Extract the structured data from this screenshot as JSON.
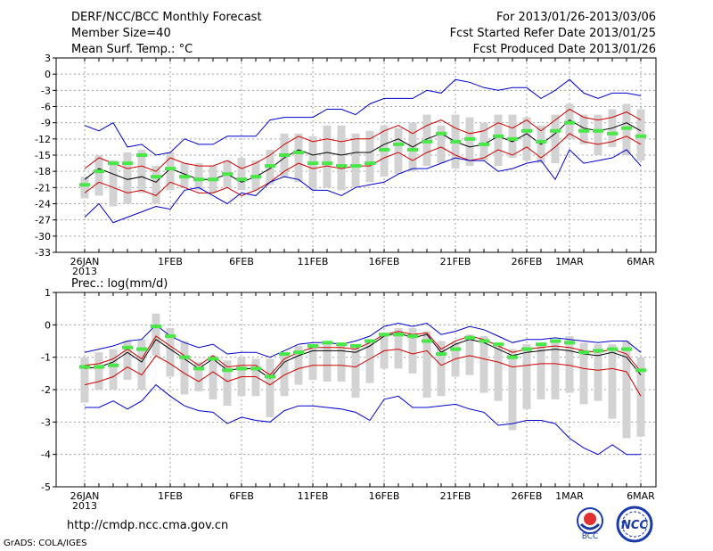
{
  "header": {
    "line1": "DERF/NCC/BCC Monthly Forecast",
    "line2": "Member Size=40",
    "line3": "Mean Surf. Temp.: °C",
    "right1": "For 2013/01/26-2013/03/06",
    "right2": "Fcst Started Refer Date 2013/01/25",
    "right3": "Fcst Produced Date 2013/01/26"
  },
  "footer": {
    "url": "http://cmdp.ncc.cma.gov.cn",
    "credit": "GrADS: COLA/IGES",
    "logo1_text": "BCC",
    "logo2_text": "NCC"
  },
  "colors": {
    "grid": "#a0a0a0",
    "box": "#d3d3d3",
    "green": "#48e848",
    "red": "#d00000",
    "blue": "#0000cc",
    "black": "#000000"
  },
  "chart_data": [
    {
      "type": "ensemble-line",
      "title": "Mean Surf. Temp.: °C",
      "x_day_range": [
        0,
        39
      ],
      "ylim": [
        -33,
        3
      ],
      "yticks": [
        3,
        0,
        -3,
        -6,
        -9,
        -12,
        -15,
        -18,
        -21,
        -24,
        -27,
        -30,
        -33
      ],
      "xticks": [
        {
          "day": 0,
          "label": "26JAN",
          "sub": "2013"
        },
        {
          "day": 6,
          "label": "1FEB"
        },
        {
          "day": 11,
          "label": "6FEB"
        },
        {
          "day": 16,
          "label": "11FEB"
        },
        {
          "day": 21,
          "label": "16FEB"
        },
        {
          "day": 26,
          "label": "21FEB"
        },
        {
          "day": 31,
          "label": "26FEB"
        },
        {
          "day": 34,
          "label": "1MAR"
        },
        {
          "day": 39,
          "label": "6MAR"
        }
      ],
      "series": [
        {
          "name": "ensemble-mean",
          "color": "black",
          "values": [
            -19.5,
            -17.5,
            -18.5,
            -19.5,
            -19.0,
            -20.0,
            -17.5,
            -18.5,
            -19.5,
            -19.5,
            -18.5,
            -20.0,
            -19.0,
            -17.5,
            -15.5,
            -14.0,
            -15.0,
            -14.5,
            -15.0,
            -14.5,
            -14.5,
            -13.0,
            -12.0,
            -13.5,
            -12.0,
            -11.0,
            -12.5,
            -13.5,
            -13.0,
            -11.5,
            -12.5,
            -11.0,
            -13.0,
            -11.0,
            -8.5,
            -10.0,
            -10.5,
            -10.0,
            -9.0,
            -10.5
          ]
        },
        {
          "name": "upper-red",
          "color": "red",
          "values": [
            -17.5,
            -15.5,
            -16.5,
            -17.5,
            -17.0,
            -18.0,
            -15.5,
            -16.5,
            -17.0,
            -17.0,
            -16.0,
            -17.5,
            -16.5,
            -15.0,
            -13.0,
            -11.5,
            -12.5,
            -12.0,
            -12.5,
            -12.0,
            -12.0,
            -10.5,
            -9.5,
            -11.0,
            -9.5,
            -8.5,
            -10.0,
            -11.0,
            -10.5,
            -9.0,
            -10.0,
            -8.5,
            -10.5,
            -8.5,
            -6.5,
            -8.0,
            -8.5,
            -8.0,
            -7.0,
            -8.5
          ]
        },
        {
          "name": "lower-red",
          "color": "red",
          "values": [
            -22.0,
            -20.0,
            -21.0,
            -22.0,
            -21.5,
            -22.5,
            -20.0,
            -21.0,
            -22.0,
            -22.0,
            -21.0,
            -22.5,
            -21.5,
            -20.0,
            -18.0,
            -16.5,
            -17.5,
            -17.0,
            -17.5,
            -17.0,
            -17.0,
            -15.5,
            -14.5,
            -16.0,
            -14.5,
            -13.5,
            -15.0,
            -16.0,
            -15.5,
            -14.0,
            -15.0,
            -13.5,
            -15.5,
            -13.5,
            -11.0,
            -12.5,
            -13.0,
            -12.5,
            -11.5,
            -13.0
          ]
        },
        {
          "name": "upper-blue",
          "color": "blue",
          "values": [
            -9.5,
            -10.5,
            -9.0,
            -13.5,
            -13.0,
            -15.0,
            -14.5,
            -12.0,
            -13.0,
            -13.0,
            -11.5,
            -11.5,
            -11.5,
            -8.5,
            -8.0,
            -8.0,
            -8.0,
            -6.5,
            -6.5,
            -7.5,
            -5.5,
            -4.5,
            -4.5,
            -4.5,
            -3.0,
            -3.5,
            -1.0,
            -1.5,
            -2.5,
            -3.0,
            -2.5,
            -2.5,
            -4.5,
            -3.0,
            -1.0,
            -3.5,
            -4.5,
            -3.5,
            -3.5,
            -4.0
          ]
        },
        {
          "name": "lower-blue",
          "color": "blue",
          "values": [
            -26.5,
            -24.0,
            -27.5,
            -26.5,
            -25.5,
            -24.5,
            -25.0,
            -21.5,
            -21.0,
            -22.5,
            -24.0,
            -22.0,
            -22.5,
            -20.0,
            -19.0,
            -19.5,
            -21.5,
            -21.5,
            -22.5,
            -21.0,
            -20.5,
            -20.0,
            -18.5,
            -17.5,
            -17.5,
            -16.5,
            -15.5,
            -16.0,
            -16.0,
            -18.0,
            -17.5,
            -16.5,
            -16.0,
            -19.5,
            -14.0,
            -16.5,
            -16.0,
            -15.5,
            -14.0,
            -17.0
          ]
        }
      ],
      "boxes": [
        {
          "low": -23.0,
          "high": -19.0,
          "mark": -20.5
        },
        {
          "low": -22.5,
          "high": -15.0,
          "mark": -18.0
        },
        {
          "low": -24.5,
          "high": -16.0,
          "mark": -16.5
        },
        {
          "low": -24.0,
          "high": -14.5,
          "mark": -16.5
        },
        {
          "low": -22.0,
          "high": -14.0,
          "mark": -15.0
        },
        {
          "low": -24.0,
          "high": -17.0,
          "mark": -19.0
        },
        {
          "low": -21.5,
          "high": -14.5,
          "mark": -17.5
        },
        {
          "low": -21.0,
          "high": -16.5,
          "mark": -19.0
        },
        {
          "low": -21.5,
          "high": -16.5,
          "mark": -19.5
        },
        {
          "low": -22.0,
          "high": -17.0,
          "mark": -19.5
        },
        {
          "low": -21.0,
          "high": -16.0,
          "mark": -18.5
        },
        {
          "low": -21.5,
          "high": -15.5,
          "mark": -19.5
        },
        {
          "low": -21.5,
          "high": -16.0,
          "mark": -19.0
        },
        {
          "low": -20.5,
          "high": -14.0,
          "mark": -17.0
        },
        {
          "low": -19.0,
          "high": -11.0,
          "mark": -15.0
        },
        {
          "low": -20.0,
          "high": -11.0,
          "mark": -14.5
        },
        {
          "low": -21.5,
          "high": -11.5,
          "mark": -16.5
        },
        {
          "low": -21.0,
          "high": -9.5,
          "mark": -16.5
        },
        {
          "low": -21.5,
          "high": -9.5,
          "mark": -17.0
        },
        {
          "low": -21.0,
          "high": -11.0,
          "mark": -17.0
        },
        {
          "low": -20.0,
          "high": -10.5,
          "mark": -16.5
        },
        {
          "low": -19.0,
          "high": -9.5,
          "mark": -14.0
        },
        {
          "low": -18.5,
          "high": -10.0,
          "mark": -13.0
        },
        {
          "low": -18.0,
          "high": -9.0,
          "mark": -14.0
        },
        {
          "low": -17.0,
          "high": -7.5,
          "mark": -12.5
        },
        {
          "low": -16.5,
          "high": -9.5,
          "mark": -11.0
        },
        {
          "low": -17.5,
          "high": -7.5,
          "mark": -12.5
        },
        {
          "low": -17.0,
          "high": -8.0,
          "mark": -12.0
        },
        {
          "low": -16.0,
          "high": -9.0,
          "mark": -13.0
        },
        {
          "low": -17.0,
          "high": -7.5,
          "mark": -11.5
        },
        {
          "low": -15.5,
          "high": -7.5,
          "mark": -12.0
        },
        {
          "low": -16.0,
          "high": -8.0,
          "mark": -10.5
        },
        {
          "low": -16.5,
          "high": -9.5,
          "mark": -12.5
        },
        {
          "low": -16.5,
          "high": -7.5,
          "mark": -10.5
        },
        {
          "low": -12.0,
          "high": -5.5,
          "mark": -9.0
        },
        {
          "low": -13.0,
          "high": -7.5,
          "mark": -10.5
        },
        {
          "low": -15.0,
          "high": -7.5,
          "mark": -10.5
        },
        {
          "low": -13.5,
          "high": -6.5,
          "mark": -11.0
        },
        {
          "low": -15.0,
          "high": -5.5,
          "mark": -10.0
        },
        {
          "low": -16.0,
          "high": -6.5,
          "mark": -11.5
        }
      ]
    },
    {
      "type": "ensemble-line",
      "title": "Prec.: log(mm/d)",
      "x_day_range": [
        0,
        39
      ],
      "ylim": [
        -5,
        1
      ],
      "yticks": [
        1,
        0,
        -1,
        -2,
        -3,
        -4,
        -5
      ],
      "xticks": [
        {
          "day": 0,
          "label": "26JAN",
          "sub": "2013"
        },
        {
          "day": 6,
          "label": "1FEB"
        },
        {
          "day": 11,
          "label": "6FEB"
        },
        {
          "day": 16,
          "label": "11FEB"
        },
        {
          "day": 21,
          "label": "16FEB"
        },
        {
          "day": 26,
          "label": "21FEB"
        },
        {
          "day": 31,
          "label": "26FEB"
        },
        {
          "day": 34,
          "label": "1MAR"
        },
        {
          "day": 39,
          "label": "6MAR"
        }
      ],
      "series": [
        {
          "name": "ensemble-mean",
          "color": "black",
          "values": [
            -1.35,
            -1.3,
            -1.15,
            -0.85,
            -1.15,
            -0.45,
            -0.75,
            -1.05,
            -1.35,
            -1.05,
            -1.4,
            -1.35,
            -1.35,
            -1.65,
            -1.15,
            -0.95,
            -0.8,
            -0.8,
            -0.8,
            -0.85,
            -0.65,
            -0.35,
            -0.25,
            -0.4,
            -0.3,
            -0.85,
            -0.6,
            -0.45,
            -0.55,
            -0.75,
            -0.95,
            -0.85,
            -0.8,
            -0.75,
            -0.8,
            -0.9,
            -0.95,
            -0.85,
            -1.0,
            -1.55
          ]
        },
        {
          "name": "upper-red",
          "color": "red",
          "values": [
            -1.25,
            -1.2,
            -1.05,
            -0.75,
            -1.05,
            -0.35,
            -0.65,
            -0.95,
            -1.25,
            -0.95,
            -1.3,
            -1.25,
            -1.25,
            -1.55,
            -1.05,
            -0.85,
            -0.7,
            -0.7,
            -0.7,
            -0.75,
            -0.55,
            -0.3,
            -0.2,
            -0.3,
            -0.25,
            -0.75,
            -0.5,
            -0.35,
            -0.45,
            -0.65,
            -0.85,
            -0.75,
            -0.7,
            -0.65,
            -0.7,
            -0.8,
            -0.85,
            -0.75,
            -0.9,
            -1.45
          ]
        },
        {
          "name": "lower-red",
          "color": "red",
          "values": [
            -1.85,
            -1.75,
            -1.6,
            -1.3,
            -1.55,
            -0.95,
            -1.2,
            -1.5,
            -1.75,
            -1.45,
            -1.75,
            -1.6,
            -1.6,
            -1.85,
            -1.55,
            -1.35,
            -1.25,
            -1.25,
            -1.25,
            -1.3,
            -1.05,
            -0.8,
            -0.75,
            -0.9,
            -0.8,
            -1.25,
            -1.05,
            -0.95,
            -1.05,
            -1.15,
            -1.3,
            -1.25,
            -1.2,
            -1.2,
            -1.25,
            -1.35,
            -1.4,
            -1.35,
            -1.45,
            -2.2
          ]
        },
        {
          "name": "upper-blue",
          "color": "blue",
          "values": [
            -0.85,
            -0.75,
            -0.65,
            -0.5,
            -0.45,
            0.0,
            -0.35,
            -0.55,
            -0.7,
            -0.6,
            -0.9,
            -0.85,
            -0.85,
            -1.0,
            -0.8,
            -0.6,
            -0.55,
            -0.55,
            -0.6,
            -0.5,
            -0.35,
            -0.05,
            0.05,
            -0.05,
            0.05,
            -0.3,
            -0.2,
            -0.05,
            -0.15,
            -0.35,
            -0.55,
            -0.45,
            -0.45,
            -0.4,
            -0.45,
            -0.5,
            -0.55,
            -0.5,
            -0.5,
            -0.85
          ]
        },
        {
          "name": "lower-blue",
          "color": "blue",
          "values": [
            -2.55,
            -2.55,
            -2.35,
            -2.6,
            -2.35,
            -1.85,
            -2.2,
            -2.5,
            -2.65,
            -2.7,
            -3.05,
            -2.85,
            -2.95,
            -3.0,
            -2.65,
            -2.5,
            -2.5,
            -2.55,
            -2.6,
            -2.7,
            -2.95,
            -2.3,
            -2.2,
            -2.55,
            -2.55,
            -2.5,
            -2.45,
            -2.6,
            -2.7,
            -3.1,
            -3.05,
            -2.95,
            -2.95,
            -3.05,
            -3.5,
            -3.8,
            -4.0,
            -3.7,
            -4.0,
            -4.0
          ]
        }
      ],
      "boxes": [
        {
          "low": -2.4,
          "high": -1.0,
          "mark": -1.3
        },
        {
          "low": -2.0,
          "high": -0.85,
          "mark": -1.3
        },
        {
          "low": -2.0,
          "high": -0.75,
          "mark": -1.25
        },
        {
          "low": -1.7,
          "high": -0.5,
          "mark": -0.7
        },
        {
          "low": -2.0,
          "high": -0.45,
          "mark": -0.75
        },
        {
          "low": -0.95,
          "high": 0.35,
          "mark": -0.05
        },
        {
          "low": -1.6,
          "high": -0.1,
          "mark": -0.35
        },
        {
          "low": -2.15,
          "high": -0.5,
          "mark": -1.0
        },
        {
          "low": -2.05,
          "high": -1.15,
          "mark": -1.35
        },
        {
          "low": -2.3,
          "high": -0.95,
          "mark": -1.05
        },
        {
          "low": -2.5,
          "high": -1.1,
          "mark": -1.4
        },
        {
          "low": -2.2,
          "high": -1.0,
          "mark": -1.35
        },
        {
          "low": -2.2,
          "high": -1.05,
          "mark": -1.35
        },
        {
          "low": -2.85,
          "high": -1.05,
          "mark": -1.6
        },
        {
          "low": -2.2,
          "high": -0.85,
          "mark": -0.9
        },
        {
          "low": -1.85,
          "high": -0.65,
          "mark": -0.85
        },
        {
          "low": -1.7,
          "high": -0.6,
          "mark": -0.65
        },
        {
          "low": -1.75,
          "high": -0.5,
          "mark": -0.55
        },
        {
          "low": -1.75,
          "high": -0.6,
          "mark": -0.6
        },
        {
          "low": -2.25,
          "high": -0.6,
          "mark": -0.65
        },
        {
          "low": -1.8,
          "high": -0.5,
          "mark": -0.5
        },
        {
          "low": -1.35,
          "high": -0.25,
          "mark": -0.3
        },
        {
          "low": -1.35,
          "high": -0.1,
          "mark": -0.3
        },
        {
          "low": -1.5,
          "high": -0.1,
          "mark": -0.35
        },
        {
          "low": -2.25,
          "high": -0.2,
          "mark": -0.5
        },
        {
          "low": -2.2,
          "high": -0.5,
          "mark": -0.9
        },
        {
          "low": -1.6,
          "high": -0.55,
          "mark": -0.75
        },
        {
          "low": -1.55,
          "high": -0.3,
          "mark": -0.4
        },
        {
          "low": -2.1,
          "high": -0.35,
          "mark": -0.5
        },
        {
          "low": -2.35,
          "high": -0.55,
          "mark": -0.6
        },
        {
          "low": -3.25,
          "high": -0.75,
          "mark": -1.0
        },
        {
          "low": -2.6,
          "high": -0.6,
          "mark": -0.75
        },
        {
          "low": -2.3,
          "high": -0.55,
          "mark": -0.6
        },
        {
          "low": -2.3,
          "high": -0.5,
          "mark": -0.5
        },
        {
          "low": -2.1,
          "high": -0.35,
          "mark": -0.55
        },
        {
          "low": -2.45,
          "high": -0.55,
          "mark": -0.85
        },
        {
          "low": -2.35,
          "high": -0.6,
          "mark": -0.8
        },
        {
          "low": -2.9,
          "high": -0.6,
          "mark": -0.75
        },
        {
          "low": -3.5,
          "high": -0.5,
          "mark": -0.75
        },
        {
          "low": -3.45,
          "high": -1.0,
          "mark": -1.4
        }
      ]
    }
  ]
}
